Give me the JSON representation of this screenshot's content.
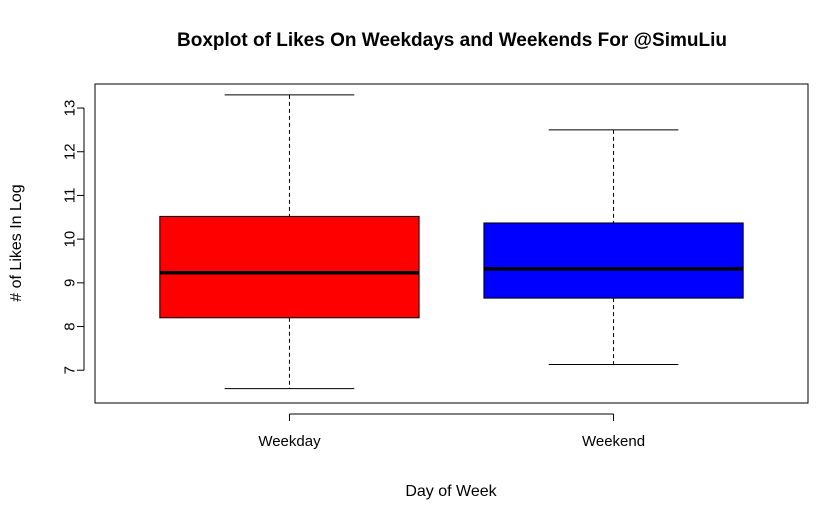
{
  "chart_data": {
    "type": "boxplot",
    "title": "Boxplot of Likes On Weekdays and Weekends For @SimuLiu",
    "xlabel": "Day of Week",
    "ylabel": "# of Likes In Log",
    "ylim": [
      6.25,
      13.55
    ],
    "yticks": [
      7,
      8,
      9,
      10,
      11,
      12,
      13
    ],
    "categories": [
      "Weekday",
      "Weekend"
    ],
    "boxes": [
      {
        "category": "Weekday",
        "min": 6.58,
        "q1": 8.2,
        "median": 9.23,
        "q3": 10.52,
        "max": 13.3,
        "color": "#ff0000"
      },
      {
        "category": "Weekend",
        "min": 7.13,
        "q1": 8.65,
        "median": 9.32,
        "q3": 10.37,
        "max": 12.5,
        "color": "#0000ff"
      }
    ],
    "grid": false,
    "legend": "none"
  }
}
